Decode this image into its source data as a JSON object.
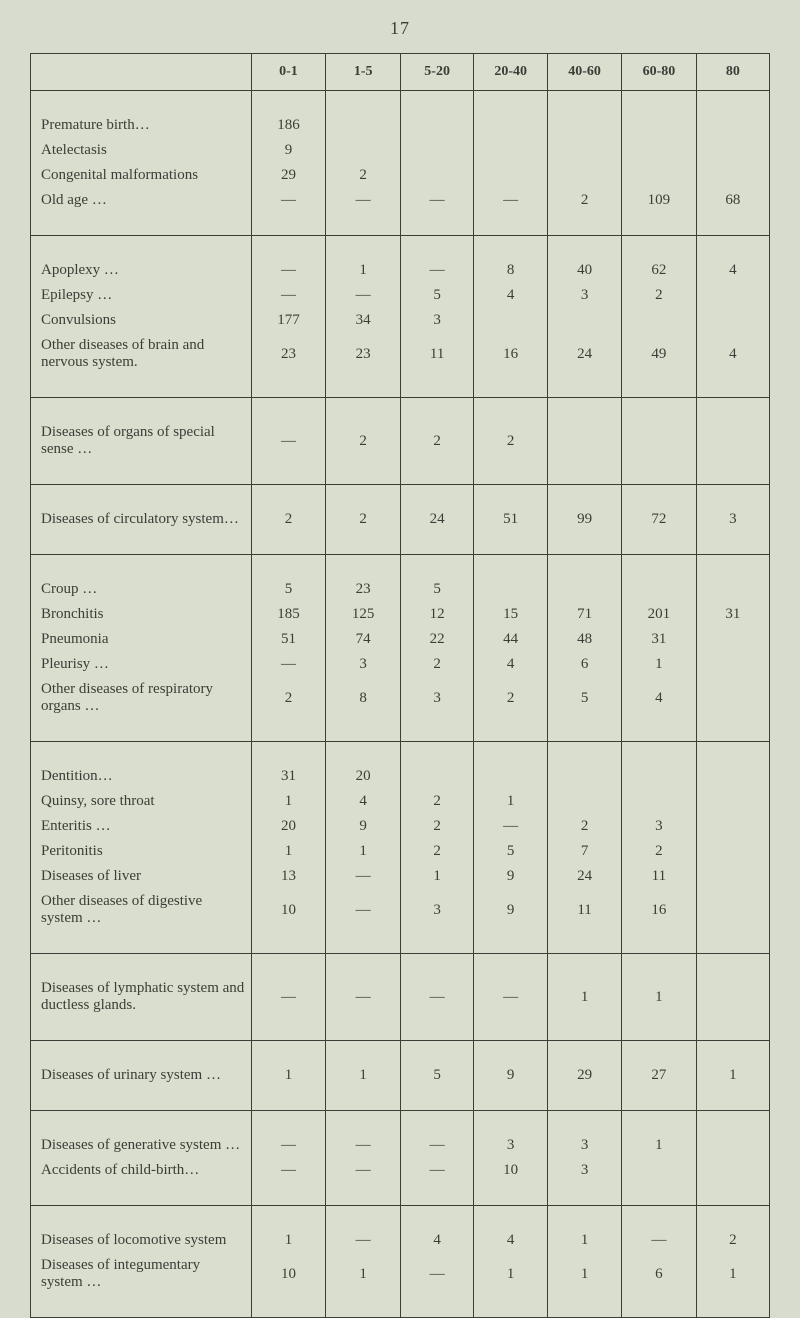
{
  "page_number": "17",
  "headers": [
    "0-1",
    "1-5",
    "5-20",
    "20-40",
    "40-60",
    "60-80",
    "80"
  ],
  "sections": [
    {
      "rows": [
        {
          "label": "Premature birth…",
          "cells": [
            "186",
            "",
            "",
            "",
            "",
            "",
            ""
          ]
        },
        {
          "label": "Atelectasis",
          "cells": [
            "9",
            "",
            "",
            "",
            "",
            "",
            ""
          ]
        },
        {
          "label": "Congenital malformations",
          "cells": [
            "29",
            "2",
            "",
            "",
            "",
            "",
            ""
          ]
        },
        {
          "label": "Old age …",
          "cells": [
            "—",
            "—",
            "—",
            "—",
            "2",
            "109",
            "68"
          ]
        }
      ]
    },
    {
      "rows": [
        {
          "label": "Apoplexy …",
          "cells": [
            "—",
            "1",
            "—",
            "8",
            "40",
            "62",
            "4"
          ]
        },
        {
          "label": "Epilepsy …",
          "cells": [
            "—",
            "—",
            "5",
            "4",
            "3",
            "2",
            ""
          ]
        },
        {
          "label": "Convulsions",
          "cells": [
            "177",
            "34",
            "3",
            "",
            "",
            "",
            ""
          ]
        },
        {
          "label": "Other diseases of brain and nervous system.",
          "cells": [
            "23",
            "23",
            "11",
            "16",
            "24",
            "49",
            "4"
          ]
        }
      ]
    },
    {
      "rows": [
        {
          "label": "Diseases of organs of special sense  …",
          "cells": [
            "—",
            "2",
            "2",
            "2",
            "",
            "",
            ""
          ]
        }
      ]
    },
    {
      "rows": [
        {
          "label": "Diseases of circulatory system…",
          "cells": [
            "2",
            "2",
            "24",
            "51",
            "99",
            "72",
            "3"
          ]
        }
      ]
    },
    {
      "rows": [
        {
          "label": "Croup  …",
          "cells": [
            "5",
            "23",
            "5",
            "",
            "",
            "",
            ""
          ]
        },
        {
          "label": "Bronchitis",
          "cells": [
            "185",
            "125",
            "12",
            "15",
            "71",
            "201",
            "31"
          ]
        },
        {
          "label": "Pneumonia",
          "cells": [
            "51",
            "74",
            "22",
            "44",
            "48",
            "31",
            ""
          ]
        },
        {
          "label": "Pleurisy …",
          "cells": [
            "—",
            "3",
            "2",
            "4",
            "6",
            "1",
            ""
          ]
        },
        {
          "label": "Other diseases of respiratory organs …",
          "cells": [
            "2",
            "8",
            "3",
            "2",
            "5",
            "4",
            ""
          ]
        }
      ]
    },
    {
      "rows": [
        {
          "label": "Dentition…",
          "cells": [
            "31",
            "20",
            "",
            "",
            "",
            "",
            ""
          ]
        },
        {
          "label": "Quinsy, sore throat",
          "cells": [
            "1",
            "4",
            "2",
            "1",
            "",
            "",
            ""
          ]
        },
        {
          "label": "Enteritis …",
          "cells": [
            "20",
            "9",
            "2",
            "—",
            "2",
            "3",
            ""
          ]
        },
        {
          "label": "Peritonitis",
          "cells": [
            "1",
            "1",
            "2",
            "5",
            "7",
            "2",
            ""
          ]
        },
        {
          "label": "Diseases of liver",
          "cells": [
            "13",
            "—",
            "1",
            "9",
            "24",
            "11",
            ""
          ]
        },
        {
          "label": "Other diseases of digestive system  …",
          "cells": [
            "10",
            "—",
            "3",
            "9",
            "11",
            "16",
            ""
          ]
        }
      ]
    },
    {
      "rows": [
        {
          "label": "Diseases of lymphatic system and ductless glands.",
          "cells": [
            "—",
            "—",
            "—",
            "—",
            "1",
            "1",
            ""
          ]
        }
      ]
    },
    {
      "rows": [
        {
          "label": "Diseases of urinary system  …",
          "cells": [
            "1",
            "1",
            "5",
            "9",
            "29",
            "27",
            "1"
          ]
        }
      ]
    },
    {
      "rows": [
        {
          "label": "Diseases of generative system …",
          "cells": [
            "—",
            "—",
            "—",
            "3",
            "3",
            "1",
            ""
          ]
        },
        {
          "label": "Accidents of child-birth…",
          "cells": [
            "—",
            "—",
            "—",
            "10",
            "3",
            "",
            ""
          ]
        }
      ]
    },
    {
      "rows": [
        {
          "label": "Diseases of locomotive system",
          "cells": [
            "1",
            "—",
            "4",
            "4",
            "1",
            "—",
            "2"
          ]
        },
        {
          "label": "Diseases of integumentary system  …",
          "cells": [
            "10",
            "1",
            "—",
            "1",
            "1",
            "6",
            "1"
          ]
        }
      ]
    }
  ]
}
